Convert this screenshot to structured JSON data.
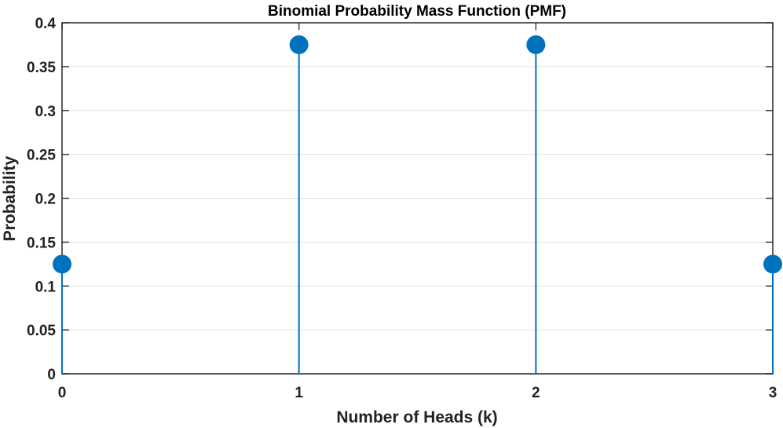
{
  "chart_data": {
    "type": "stem",
    "title": "Binomial Probability Mass Function (PMF)",
    "xlabel": "Number of Heads (k)",
    "ylabel": "Probability",
    "x": [
      0,
      1,
      2,
      3
    ],
    "values": [
      0.125,
      0.375,
      0.375,
      0.125
    ],
    "xlim": [
      0,
      3
    ],
    "ylim": [
      0,
      0.4
    ],
    "xticks": [
      "0",
      "1",
      "2",
      "3"
    ],
    "yticks": [
      "0",
      "0.05",
      "0.1",
      "0.15",
      "0.2",
      "0.25",
      "0.3",
      "0.35",
      "0.4"
    ],
    "grid": true,
    "legend": null,
    "series_color": "#0072BD"
  }
}
